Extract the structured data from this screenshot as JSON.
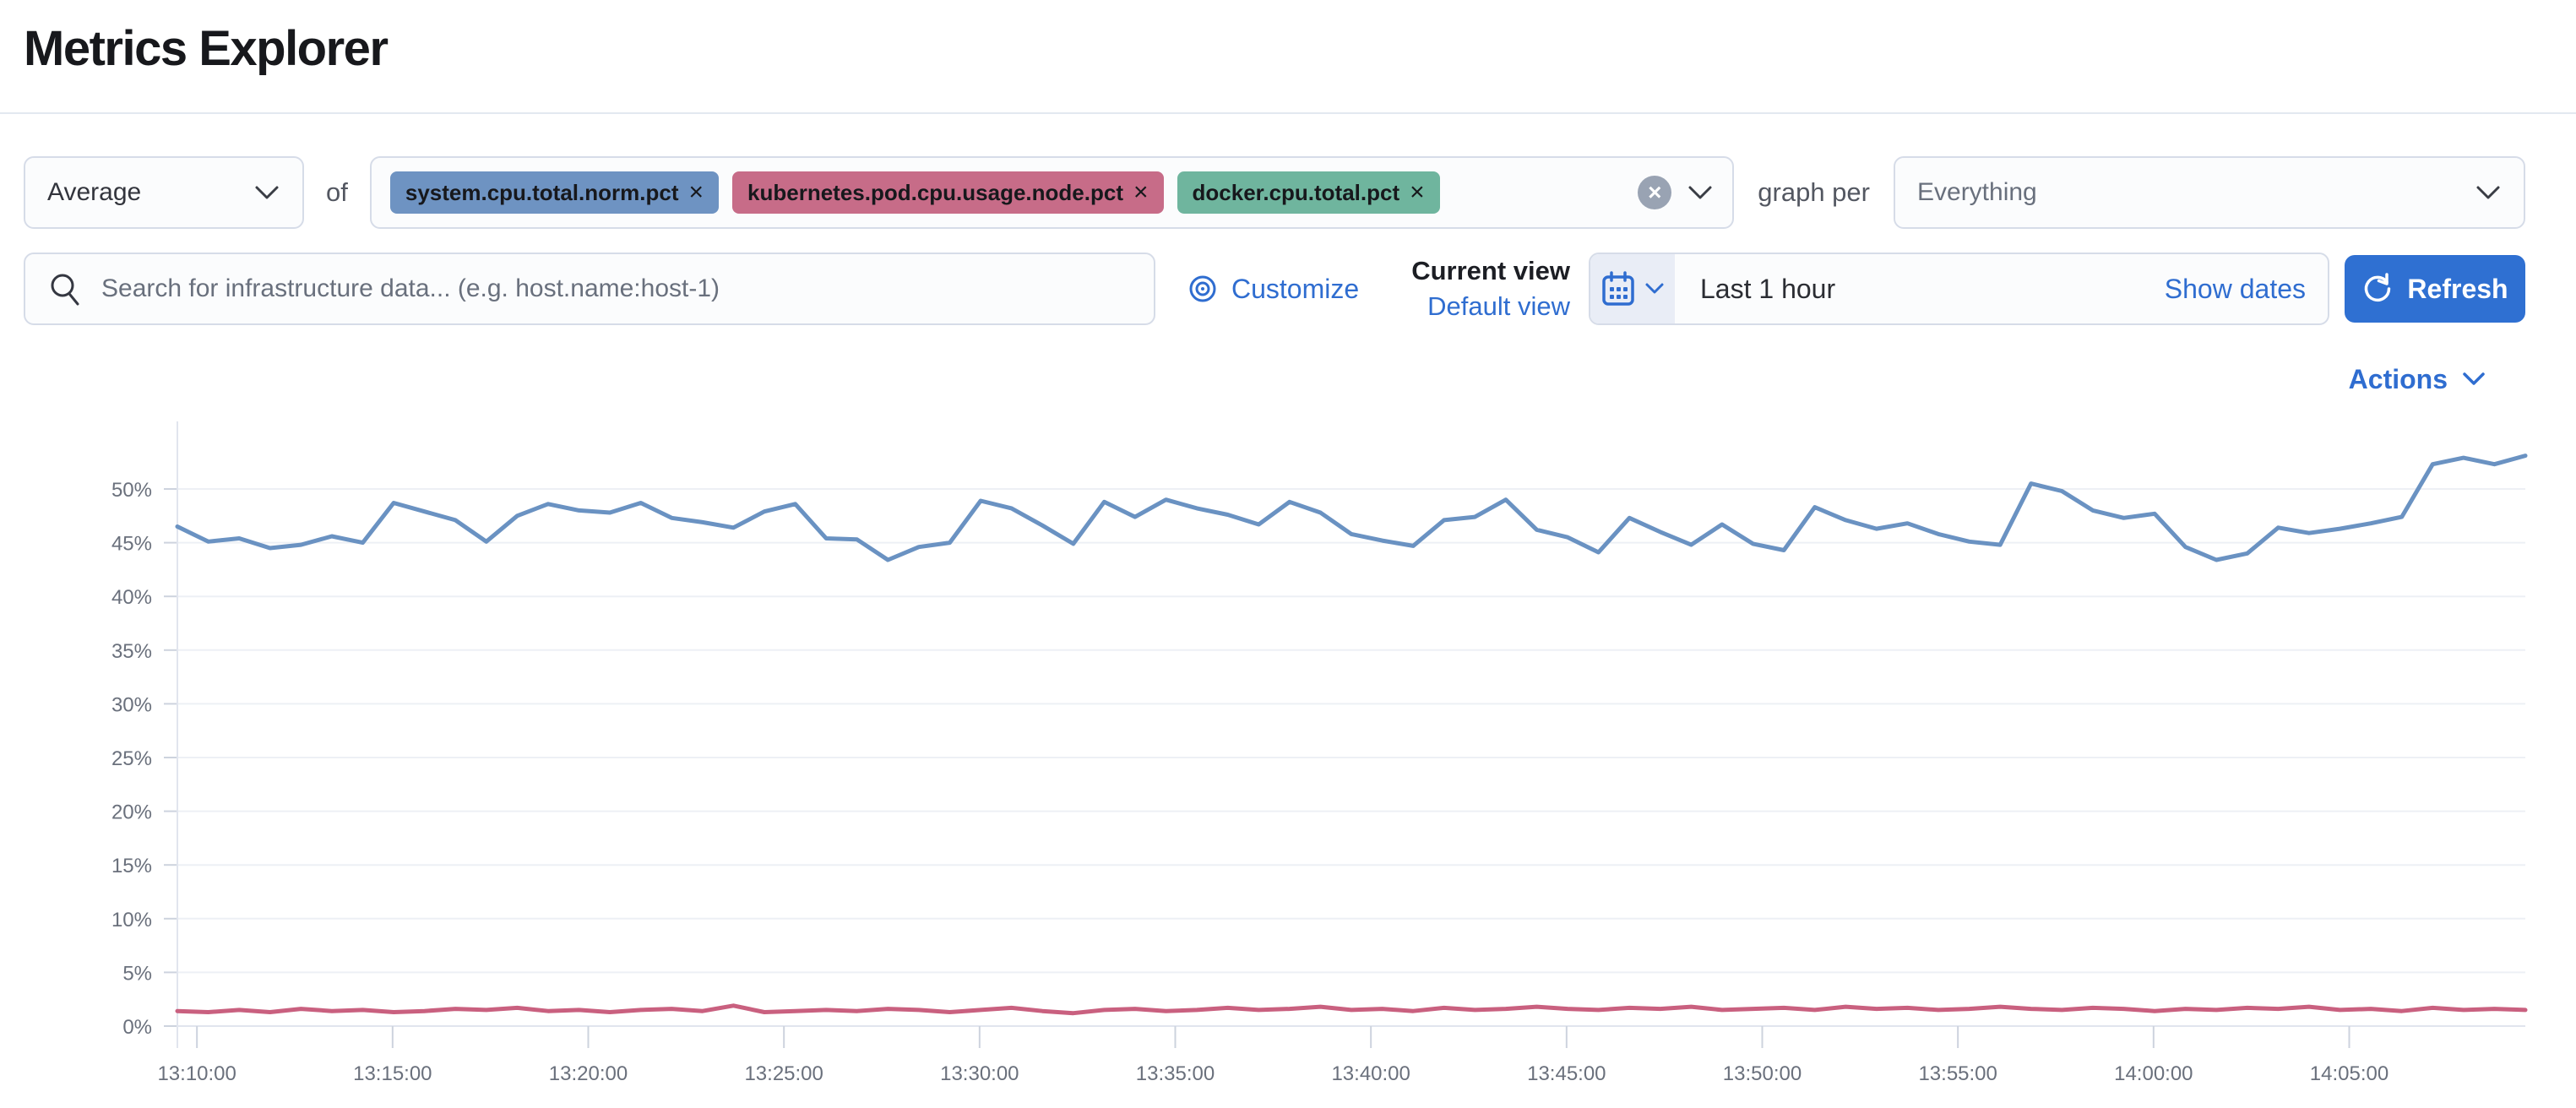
{
  "page": {
    "title": "Metrics Explorer"
  },
  "toolbar": {
    "aggregation": {
      "value": "Average"
    },
    "of_label": "of",
    "metrics": [
      {
        "label": "system.cpu.total.norm.pct",
        "color": "#6E93C2"
      },
      {
        "label": "kubernetes.pod.cpu.usage.node.pct",
        "color": "#C76C88"
      },
      {
        "label": "docker.cpu.total.pct",
        "color": "#6FB59E"
      }
    ],
    "clear_icon": "clear-all-metrics",
    "graph_per_label": "graph per",
    "group_by": {
      "value": "Everything"
    }
  },
  "searchbar": {
    "placeholder": "Search for infrastructure data... (e.g. host.name:host-1)",
    "value": ""
  },
  "view_controls": {
    "customize_label": "Customize",
    "current_view_label": "Current view",
    "view_name": "Default view"
  },
  "datepicker": {
    "range_label": "Last 1 hour",
    "show_dates_label": "Show dates",
    "refresh_label": "Refresh"
  },
  "actions_label": "Actions",
  "colors": {
    "primary_link": "#2F6DD0",
    "refresh_button": "#2F70D2",
    "line_blue": "#6A92C2",
    "line_pink": "#C9607F",
    "badge_blue": "#6E93C2",
    "badge_pink": "#C76C88",
    "badge_green": "#6FB59E",
    "datepicker_quick_bg": "#E9EDF6",
    "input_border": "#D6DCE8",
    "muted_text": "#69707D"
  },
  "chart_data": {
    "type": "line",
    "title": "",
    "xlabel": "",
    "ylabel": "",
    "x_ticks": [
      "13:10:00",
      "13:15:00",
      "13:20:00",
      "13:25:00",
      "13:30:00",
      "13:35:00",
      "13:40:00",
      "13:45:00",
      "13:50:00",
      "13:55:00",
      "14:00:00",
      "14:05:00"
    ],
    "x_tick_interval": "5 min",
    "y_ticks": [
      "0%",
      "5%",
      "10%",
      "15%",
      "20%",
      "25%",
      "30%",
      "35%",
      "40%",
      "45%",
      "50%"
    ],
    "ylim": [
      0,
      55
    ],
    "grid": "horizontal",
    "legend": "none",
    "series": [
      {
        "name": "Average system.cpu.total.norm.pct",
        "color": "#6A92C2",
        "unit": "%",
        "values": [
          46.5,
          45.1,
          45.4,
          44.5,
          44.8,
          45.6,
          45.0,
          48.7,
          47.9,
          47.1,
          45.1,
          47.5,
          48.6,
          48.0,
          47.8,
          48.7,
          47.3,
          46.9,
          46.4,
          47.9,
          48.6,
          45.4,
          45.3,
          43.4,
          44.6,
          45.0,
          48.9,
          48.2,
          46.6,
          44.9,
          48.8,
          47.4,
          49.0,
          48.2,
          47.6,
          46.7,
          48.8,
          47.8,
          45.8,
          45.2,
          44.7,
          47.1,
          47.4,
          49.0,
          46.2,
          45.5,
          44.1,
          47.3,
          46.0,
          44.8,
          46.7,
          44.9,
          44.3,
          48.3,
          47.1,
          46.3,
          46.8,
          45.8,
          45.1,
          44.8,
          50.5,
          49.8,
          48.0,
          47.3,
          47.7,
          44.6,
          43.4,
          44.0,
          46.4,
          45.9,
          46.3,
          46.8,
          47.4,
          52.3,
          52.9,
          52.3,
          53.1
        ]
      },
      {
        "name": "Average kubernetes.pod.cpu.usage.node.pct",
        "color": "#C9607F",
        "unit": "%",
        "values": [
          1.4,
          1.3,
          1.5,
          1.3,
          1.6,
          1.4,
          1.5,
          1.3,
          1.4,
          1.6,
          1.5,
          1.7,
          1.4,
          1.5,
          1.3,
          1.5,
          1.6,
          1.4,
          1.9,
          1.3,
          1.4,
          1.5,
          1.4,
          1.6,
          1.5,
          1.3,
          1.5,
          1.7,
          1.4,
          1.2,
          1.5,
          1.6,
          1.4,
          1.5,
          1.7,
          1.5,
          1.6,
          1.8,
          1.5,
          1.6,
          1.4,
          1.7,
          1.5,
          1.6,
          1.8,
          1.6,
          1.5,
          1.7,
          1.6,
          1.8,
          1.5,
          1.6,
          1.7,
          1.5,
          1.8,
          1.6,
          1.7,
          1.5,
          1.6,
          1.8,
          1.6,
          1.5,
          1.7,
          1.6,
          1.4,
          1.6,
          1.5,
          1.7,
          1.6,
          1.8,
          1.5,
          1.6,
          1.4,
          1.7,
          1.5,
          1.6,
          1.5
        ]
      }
    ]
  }
}
